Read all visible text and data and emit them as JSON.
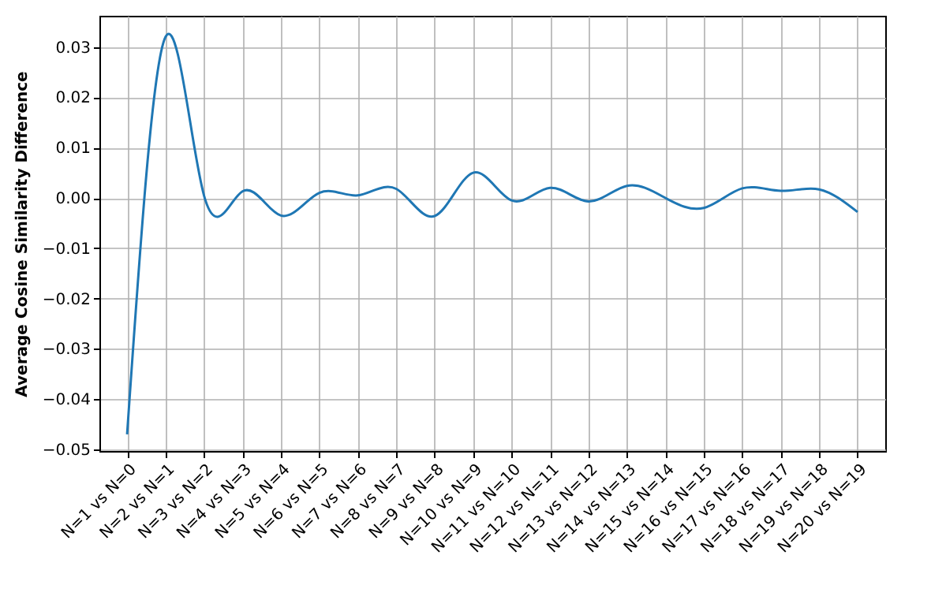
{
  "chart_data": {
    "type": "line",
    "ylabel": "Average Cosine Similarity Difference",
    "categories": [
      "N=1 vs N=0",
      "N=2 vs N=1",
      "N=3 vs N=2",
      "N=4 vs N=3",
      "N=5 vs N=4",
      "N=6 vs N=5",
      "N=7 vs N=6",
      "N=8 vs N=7",
      "N=9 vs N=8",
      "N=10 vs N=9",
      "N=11 vs N=10",
      "N=12 vs N=11",
      "N=13 vs N=12",
      "N=14 vs N=13",
      "N=15 vs N=14",
      "N=16 vs N=15",
      "N=17 vs N=16",
      "N=18 vs N=17",
      "N=19 vs N=18",
      "N=20 vs N=19"
    ],
    "series": [
      {
        "color": "#1f77b4",
        "values": [
          -0.047,
          0.032,
          0.0005,
          0.0013,
          -0.0035,
          0.001,
          0.0005,
          0.0018,
          -0.0036,
          0.005,
          -0.0005,
          0.002,
          -0.0007,
          0.0024,
          0.0,
          -0.002,
          0.0019,
          0.0014,
          0.0017,
          -0.0028
        ]
      }
    ],
    "ylim": [
      -0.0503,
      0.0362
    ],
    "yticks": [
      {
        "value": -0.05,
        "label": "−0.05"
      },
      {
        "value": -0.04,
        "label": "−0.04"
      },
      {
        "value": -0.03,
        "label": "−0.03"
      },
      {
        "value": -0.02,
        "label": "−0.02"
      },
      {
        "value": -0.01,
        "label": "−0.01"
      },
      {
        "value": 0,
        "label": "0.00"
      },
      {
        "value": 0.01,
        "label": "0.01"
      },
      {
        "value": 0.02,
        "label": "0.02"
      },
      {
        "value": 0.03,
        "label": "0.03"
      }
    ],
    "grid": true,
    "marker": "none",
    "line_style": "solid"
  }
}
